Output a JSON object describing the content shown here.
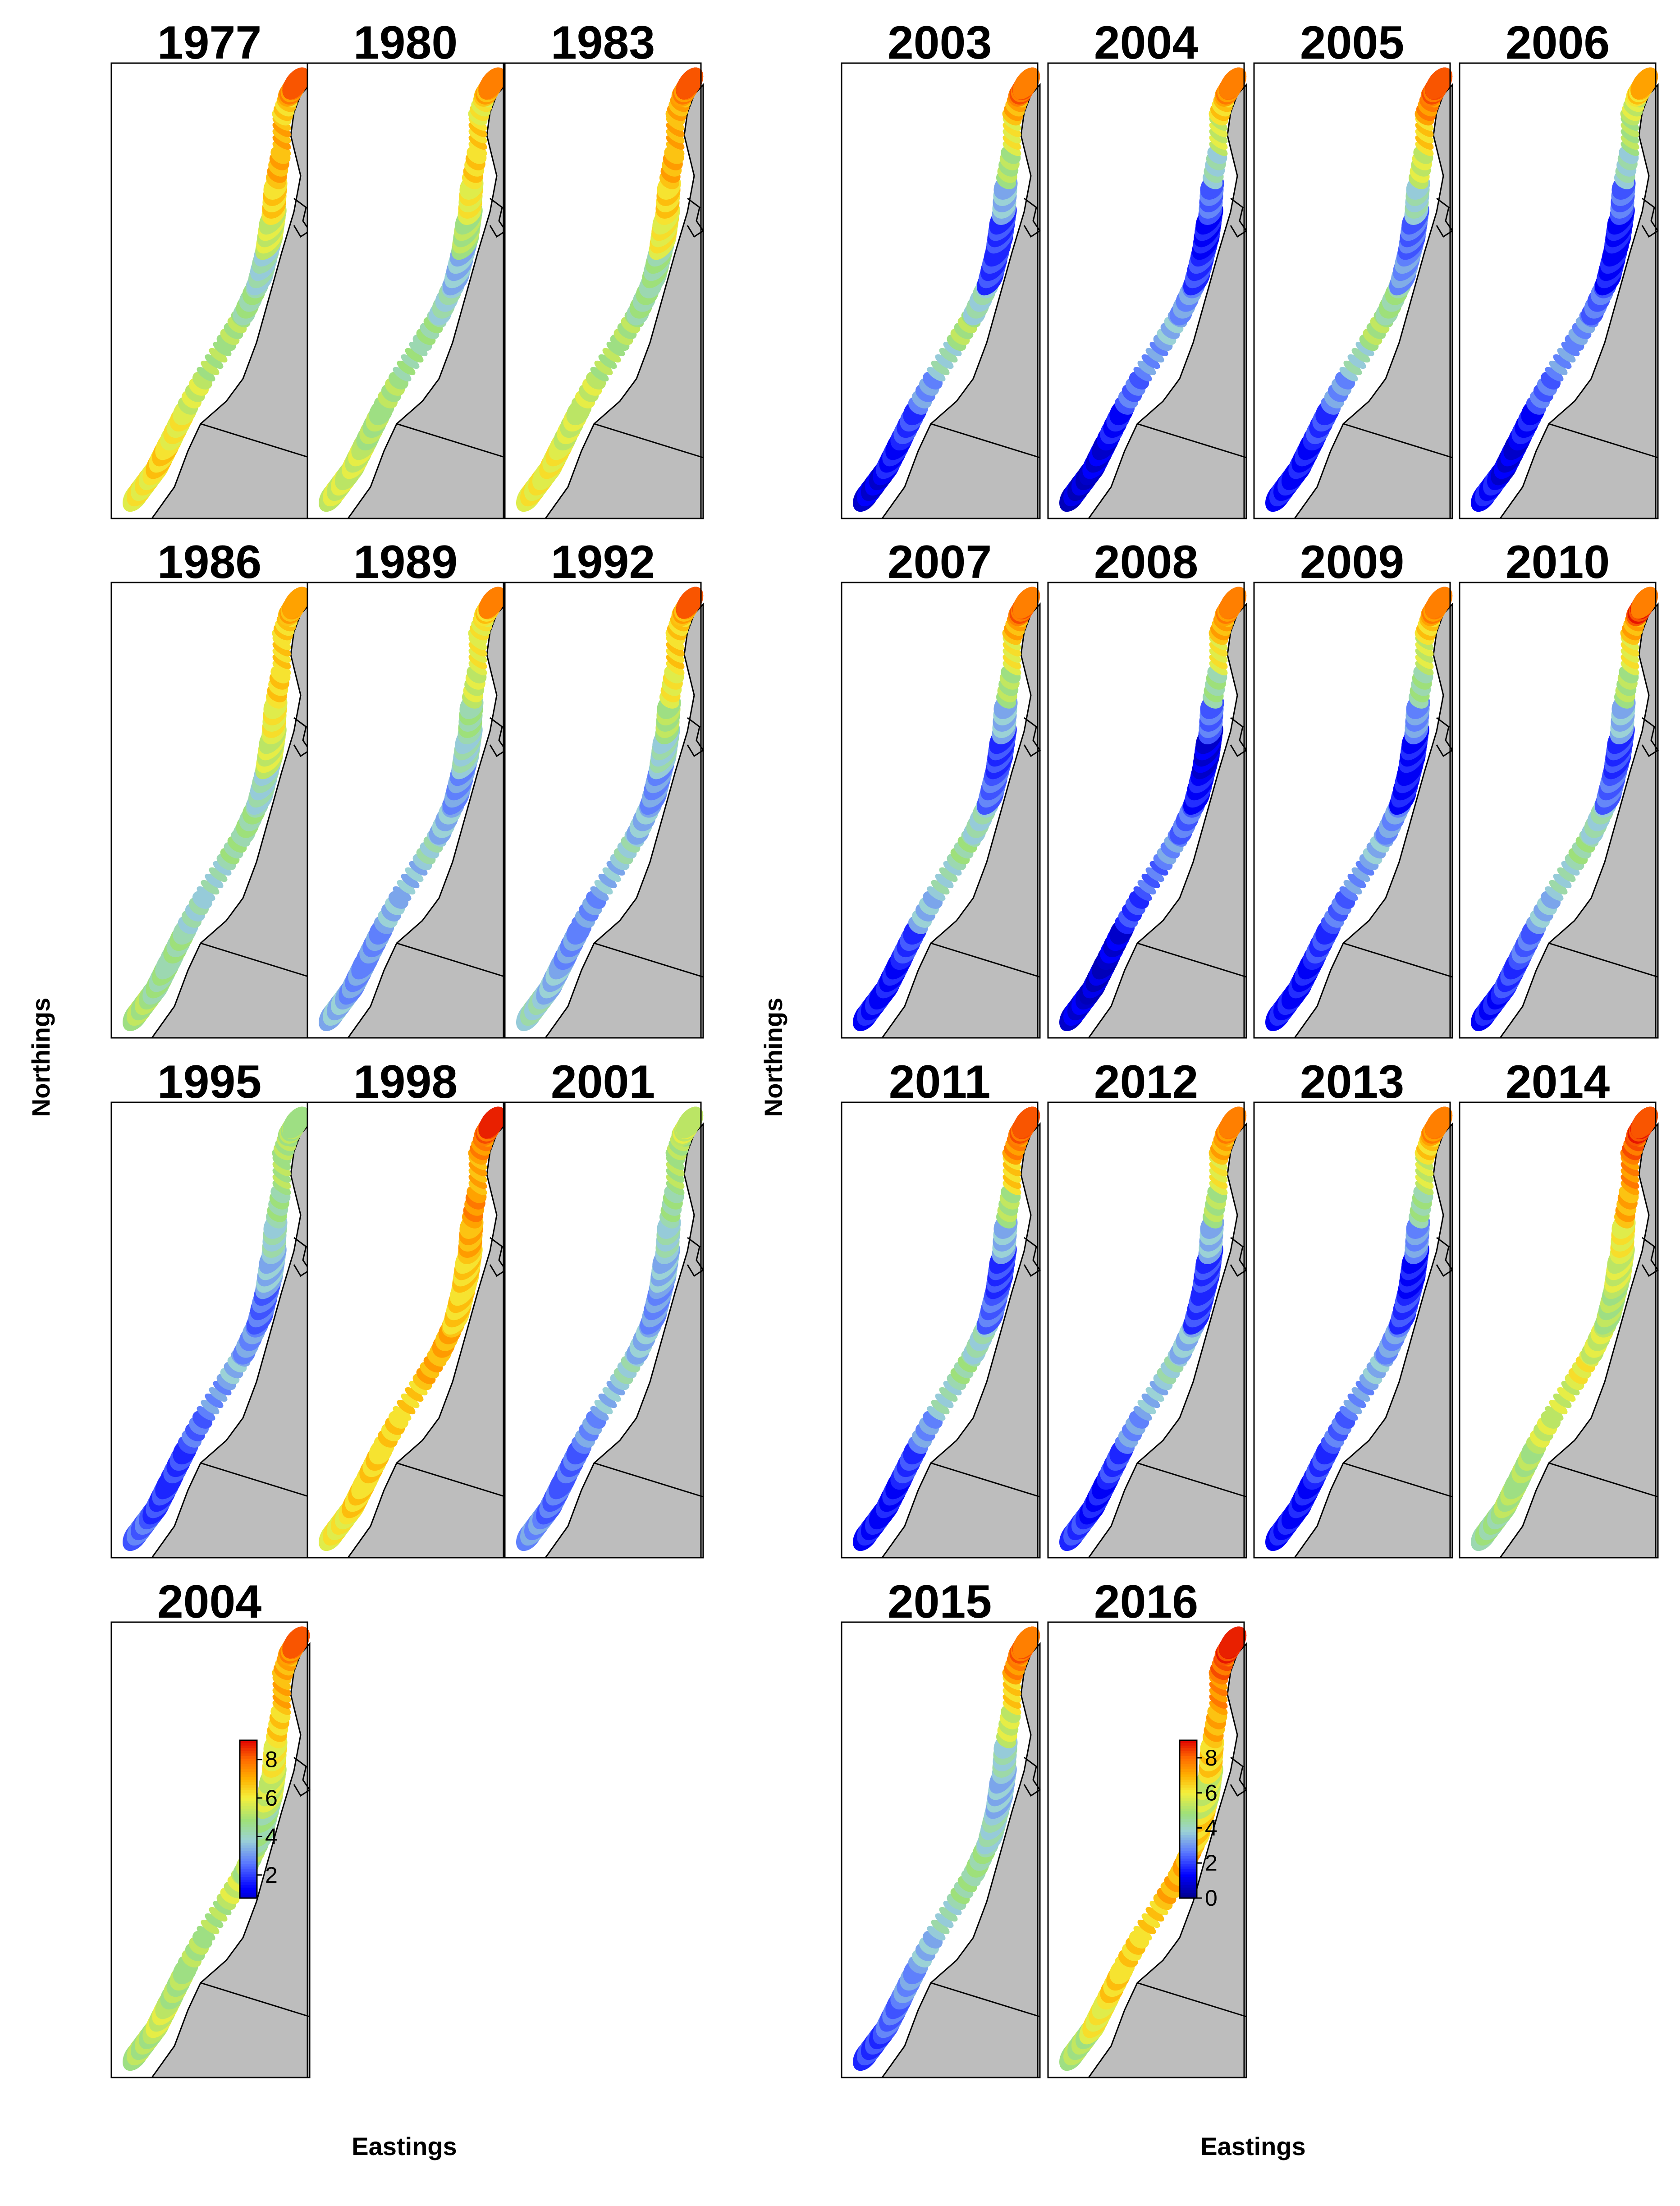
{
  "left_block": {
    "xlabel": "Eastings",
    "ylabel": "Northings",
    "panels": [
      {
        "year": "1977",
        "pattern": [
          6.0,
          6.5,
          6.0,
          5.5,
          5.0,
          5.0,
          4.5,
          4.0,
          5.5,
          6.5,
          7.0,
          7.0,
          6.5,
          7.5,
          8.5
        ]
      },
      {
        "year": "1980",
        "pattern": [
          5.5,
          5.5,
          5.0,
          5.0,
          4.5,
          4.5,
          4.0,
          3.5,
          5.0,
          6.0,
          6.5,
          6.5,
          6.0,
          7.0,
          8.0
        ]
      },
      {
        "year": "1983",
        "pattern": [
          6.0,
          6.0,
          5.5,
          5.5,
          5.0,
          5.0,
          4.5,
          4.5,
          6.0,
          6.5,
          7.0,
          7.0,
          7.0,
          7.5,
          8.5
        ]
      },
      {
        "year": "1986",
        "pattern": [
          5.0,
          4.5,
          4.5,
          4.0,
          4.0,
          4.5,
          4.5,
          4.0,
          5.5,
          6.0,
          6.5,
          6.5,
          6.5,
          7.0,
          7.5
        ]
      },
      {
        "year": "1989",
        "pattern": [
          3.5,
          3.0,
          3.0,
          3.5,
          3.5,
          4.0,
          3.5,
          3.0,
          4.0,
          4.5,
          5.5,
          6.0,
          6.0,
          6.5,
          8.0
        ]
      },
      {
        "year": "1992",
        "pattern": [
          4.0,
          3.5,
          3.0,
          3.0,
          3.5,
          4.0,
          3.5,
          3.0,
          4.0,
          5.0,
          6.0,
          6.5,
          6.5,
          7.0,
          8.5
        ]
      },
      {
        "year": "1995",
        "pattern": [
          2.5,
          2.0,
          2.0,
          2.5,
          3.0,
          3.5,
          3.0,
          2.5,
          3.5,
          4.0,
          4.5,
          5.0,
          5.0,
          5.0,
          5.0
        ]
      },
      {
        "year": "1998",
        "pattern": [
          6.0,
          6.5,
          6.5,
          6.5,
          6.5,
          7.0,
          7.0,
          6.5,
          6.5,
          7.0,
          7.5,
          7.0,
          7.5,
          8.0,
          9.0
        ]
      },
      {
        "year": "2001",
        "pattern": [
          3.0,
          2.5,
          2.5,
          3.0,
          3.5,
          4.0,
          3.5,
          3.0,
          3.5,
          4.0,
          4.5,
          5.0,
          5.0,
          5.5,
          5.5
        ]
      },
      {
        "year": "2004",
        "pattern": [
          5.0,
          5.5,
          5.0,
          5.0,
          5.0,
          5.5,
          5.0,
          4.5,
          5.5,
          6.0,
          6.5,
          7.0,
          7.0,
          7.5,
          8.5
        ]
      }
    ],
    "colorbar": {
      "ticks": [
        "8",
        "6",
        "4",
        "2"
      ],
      "tick_values": [
        8,
        6,
        4,
        2
      ],
      "min": 0.8,
      "max": 9.0
    }
  },
  "right_block": {
    "xlabel": "Eastings",
    "ylabel": "Northings",
    "panels": [
      {
        "year": "2003",
        "pattern": [
          1.0,
          1.5,
          2.0,
          3.0,
          4.0,
          5.0,
          4.0,
          2.0,
          2.0,
          3.5,
          5.0,
          6.0,
          7.0,
          8.0,
          8.0
        ]
      },
      {
        "year": "2004",
        "pattern": [
          0.8,
          1.0,
          1.5,
          2.5,
          3.0,
          3.5,
          3.0,
          2.0,
          1.5,
          2.5,
          4.0,
          5.5,
          6.5,
          7.5,
          8.0
        ]
      },
      {
        "year": "2005",
        "pattern": [
          1.5,
          1.5,
          2.0,
          3.0,
          4.0,
          5.0,
          4.5,
          3.0,
          2.5,
          4.0,
          5.5,
          6.5,
          7.5,
          8.0,
          8.5
        ]
      },
      {
        "year": "2006",
        "pattern": [
          1.5,
          1.0,
          1.5,
          2.5,
          3.0,
          3.0,
          2.5,
          1.5,
          1.5,
          2.5,
          4.0,
          5.0,
          5.5,
          6.5,
          7.5
        ]
      },
      {
        "year": "2007",
        "pattern": [
          1.5,
          1.5,
          2.0,
          3.5,
          4.0,
          4.5,
          4.0,
          2.5,
          2.0,
          3.5,
          5.0,
          6.0,
          7.0,
          8.0,
          8.0
        ]
      },
      {
        "year": "2008",
        "pattern": [
          1.0,
          0.8,
          1.0,
          2.0,
          2.5,
          3.0,
          2.5,
          1.5,
          1.0,
          2.5,
          4.5,
          6.0,
          7.0,
          7.5,
          8.0
        ]
      },
      {
        "year": "2009",
        "pattern": [
          1.5,
          1.5,
          2.0,
          2.5,
          3.0,
          3.5,
          3.0,
          1.5,
          1.5,
          3.0,
          4.5,
          5.5,
          6.5,
          7.5,
          8.0
        ]
      },
      {
        "year": "2010",
        "pattern": [
          1.5,
          2.0,
          2.5,
          3.5,
          4.0,
          4.5,
          4.0,
          2.5,
          2.0,
          3.5,
          5.0,
          6.0,
          7.0,
          8.5,
          8.0
        ]
      },
      {
        "year": "2011",
        "pattern": [
          1.5,
          1.5,
          2.0,
          3.0,
          4.0,
          4.5,
          4.0,
          2.5,
          2.0,
          3.5,
          5.0,
          6.5,
          7.5,
          8.0,
          8.5
        ]
      },
      {
        "year": "2012",
        "pattern": [
          2.0,
          1.5,
          2.0,
          3.0,
          3.5,
          4.0,
          3.5,
          2.0,
          2.0,
          3.5,
          5.0,
          6.0,
          7.0,
          7.5,
          8.0
        ]
      },
      {
        "year": "2013",
        "pattern": [
          1.5,
          1.5,
          2.0,
          2.5,
          3.0,
          3.5,
          3.0,
          2.0,
          1.5,
          3.0,
          4.5,
          5.5,
          6.5,
          7.5,
          8.0
        ]
      },
      {
        "year": "2014",
        "pattern": [
          4.5,
          5.0,
          5.0,
          5.5,
          5.5,
          6.0,
          5.5,
          5.0,
          5.5,
          6.0,
          7.0,
          7.5,
          8.0,
          8.5,
          8.5
        ]
      },
      {
        "year": "2015",
        "pattern": [
          2.0,
          2.5,
          3.0,
          3.5,
          4.0,
          4.5,
          4.5,
          4.0,
          3.5,
          4.0,
          5.5,
          6.5,
          7.5,
          8.0,
          8.0
        ]
      },
      {
        "year": "2016",
        "pattern": [
          5.0,
          6.0,
          6.5,
          6.5,
          6.5,
          7.0,
          7.0,
          6.5,
          5.5,
          6.5,
          7.0,
          7.5,
          8.0,
          8.5,
          9.0
        ]
      }
    ],
    "colorbar": {
      "ticks": [
        "8",
        "6",
        "4",
        "2",
        "0"
      ],
      "tick_values": [
        8,
        6,
        4,
        2,
        0
      ],
      "min": 0.0,
      "max": 9.0
    }
  },
  "colors": {
    "land": "#bdbdbd",
    "scale": [
      "#00008b",
      "#0000ff",
      "#5a78ff",
      "#9bd2d6",
      "#9ee07a",
      "#f4f03c",
      "#ffb000",
      "#ff6a00",
      "#e00000"
    ]
  }
}
